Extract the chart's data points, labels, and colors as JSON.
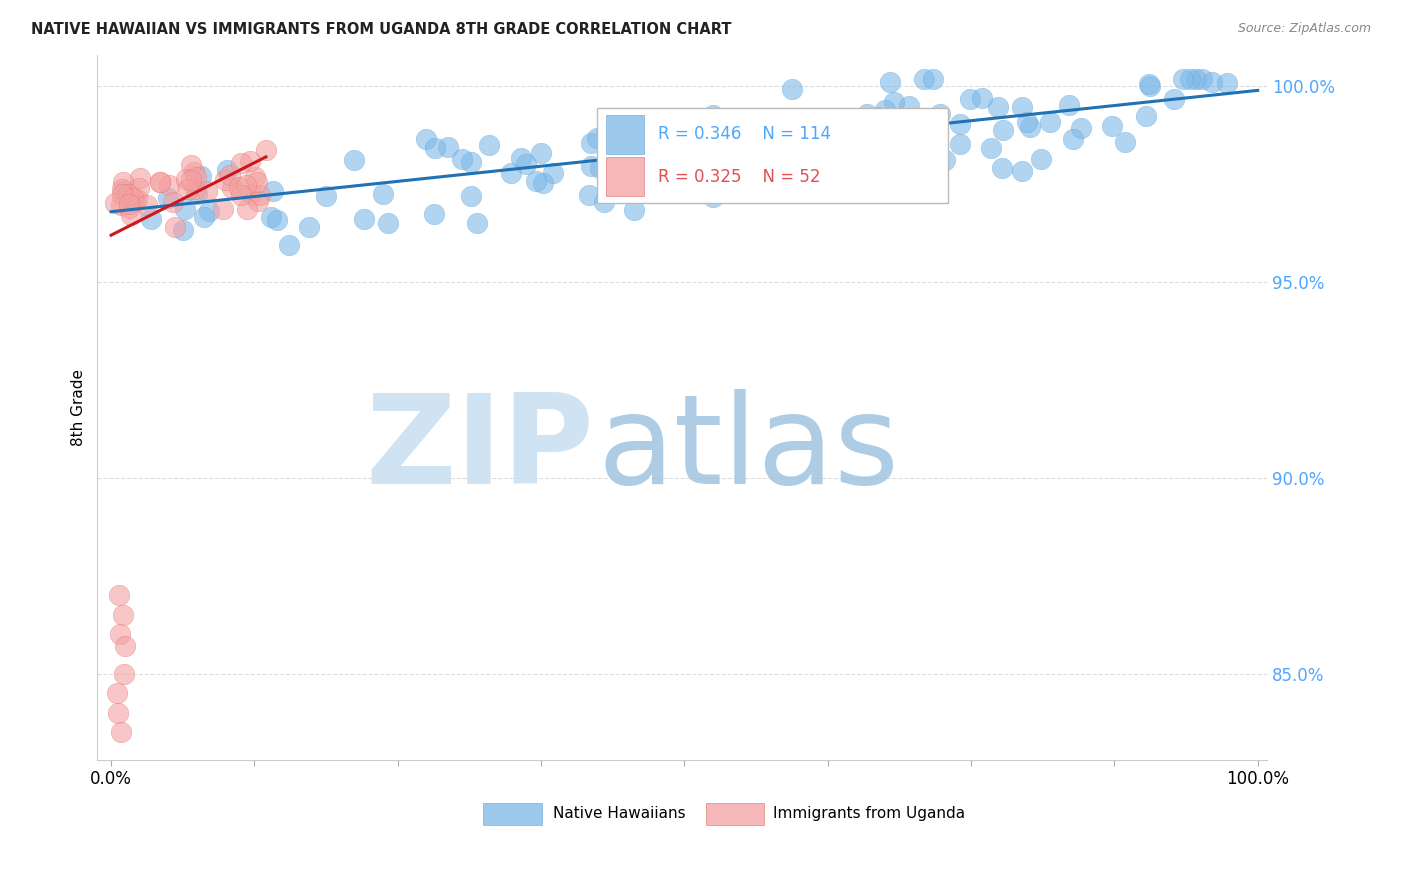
{
  "title": "NATIVE HAWAIIAN VS IMMIGRANTS FROM UGANDA 8TH GRADE CORRELATION CHART",
  "source": "Source: ZipAtlas.com",
  "ylabel": "8th Grade",
  "ytick_labels": [
    "85.0%",
    "90.0%",
    "95.0%",
    "100.0%"
  ],
  "ytick_values": [
    0.85,
    0.9,
    0.95,
    1.0
  ],
  "xlim": [
    0.0,
    1.0
  ],
  "ylim": [
    0.828,
    1.008
  ],
  "legend_blue_R": "R = 0.346",
  "legend_blue_N": "N = 114",
  "legend_pink_R": "R = 0.325",
  "legend_pink_N": "N = 52",
  "legend_label_blue": "Native Hawaiians",
  "legend_label_pink": "Immigrants from Uganda",
  "blue_color": "#7db8e8",
  "blue_color_edge": "#5a9fd4",
  "pink_color": "#f4a0a0",
  "pink_color_edge": "#e06060",
  "trendline_blue_color": "#2171b5",
  "trendline_pink_color": "#cb181d",
  "grid_color": "#dddddd",
  "background_color": "#ffffff",
  "ytick_color": "#4da6ff",
  "xtick_color": "#000000",
  "watermark_zip_color": "#c8dff0",
  "watermark_atlas_color": "#a0c4e0"
}
